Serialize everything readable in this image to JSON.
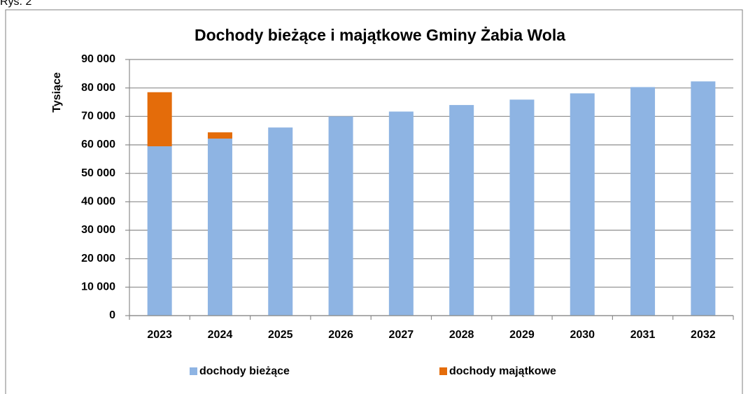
{
  "caption": "Rys. 2",
  "chart_data": {
    "type": "stacked_bar",
    "title": "Dochody bieżące i majątkowe Gminy Żabia Wola",
    "y_label": "Tysiące",
    "categories": [
      "2023",
      "2024",
      "2025",
      "2026",
      "2027",
      "2028",
      "2029",
      "2030",
      "2031",
      "2032"
    ],
    "series": [
      {
        "name": "dochody bieżące",
        "color": "#8eb4e3",
        "values": [
          59500,
          62200,
          66100,
          70000,
          71700,
          74000,
          75900,
          78100,
          80300,
          82300
        ]
      },
      {
        "name": "dochody majątkowe",
        "color": "#e46c0a",
        "values": [
          19000,
          2200,
          0,
          0,
          0,
          0,
          0,
          0,
          0,
          0
        ]
      }
    ],
    "ylim": [
      0,
      90000
    ],
    "yticks": [
      0,
      {
        "value": 10000,
        "label": "10 000"
      },
      {
        "value": 20000,
        "label": "20 000"
      },
      {
        "value": 30000,
        "label": "30 000"
      },
      {
        "value": 40000,
        "label": "40 000"
      },
      {
        "value": 50000,
        "label": "50 000"
      },
      {
        "value": 60000,
        "label": "60 000"
      },
      {
        "value": 70000,
        "label": "70 000"
      },
      {
        "value": 80000,
        "label": "80 000"
      },
      {
        "value": 90000,
        "label": "90 000"
      }
    ],
    "grid": true,
    "legend": "bottom"
  }
}
